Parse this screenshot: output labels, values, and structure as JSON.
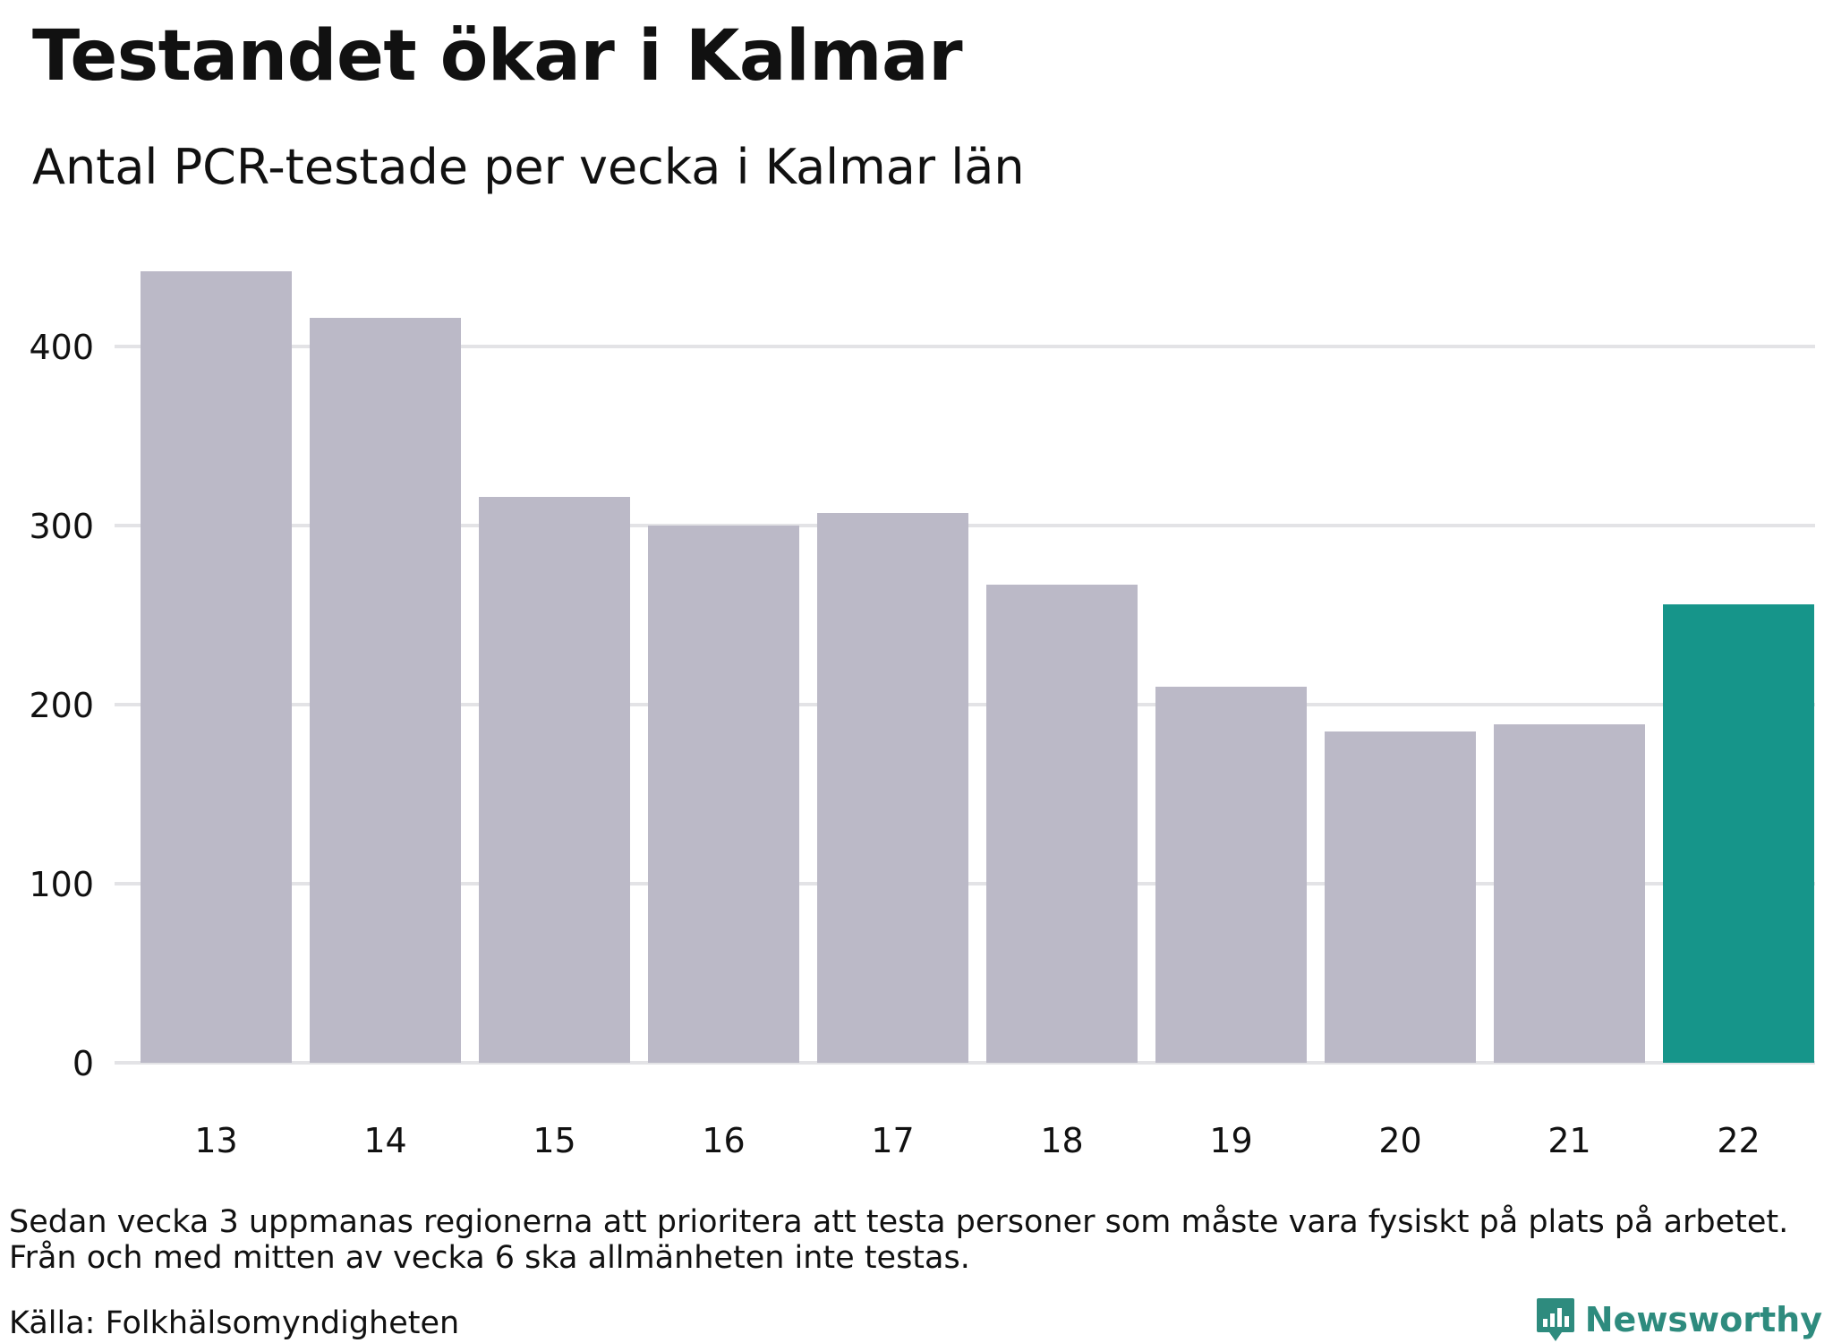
{
  "header": {
    "title": "Testandet ökar i Kalmar",
    "subtitle": "Antal PCR-testade per vecka i Kalmar län"
  },
  "footer": {
    "note_line1": "Sedan vecka 3 uppmanas regionerna att prioritera att testa personer som måste vara fysiskt på plats på arbetet.",
    "note_line2": "Från och med mitten av vecka 6 ska allmänheten inte testas.",
    "source": "Källa: Folkhälsomyndigheten",
    "brand": "Newsworthy",
    "brand_icon": "bar-chart-logo-icon"
  },
  "colors": {
    "bar": "#bbb9c7",
    "highlight": "#16958a",
    "grid": "#e3e3e6",
    "brand": "#2e8b7e"
  },
  "chart_data": {
    "type": "bar",
    "categories": [
      "13",
      "14",
      "15",
      "16",
      "17",
      "18",
      "19",
      "20",
      "21",
      "22"
    ],
    "values": [
      442,
      416,
      316,
      300,
      307,
      267,
      210,
      185,
      189,
      256
    ],
    "highlight_index": 9,
    "ylim": [
      0,
      450
    ],
    "yticks": [
      0,
      100,
      200,
      300,
      400
    ],
    "grid": true,
    "xlabel": "",
    "ylabel": ""
  }
}
